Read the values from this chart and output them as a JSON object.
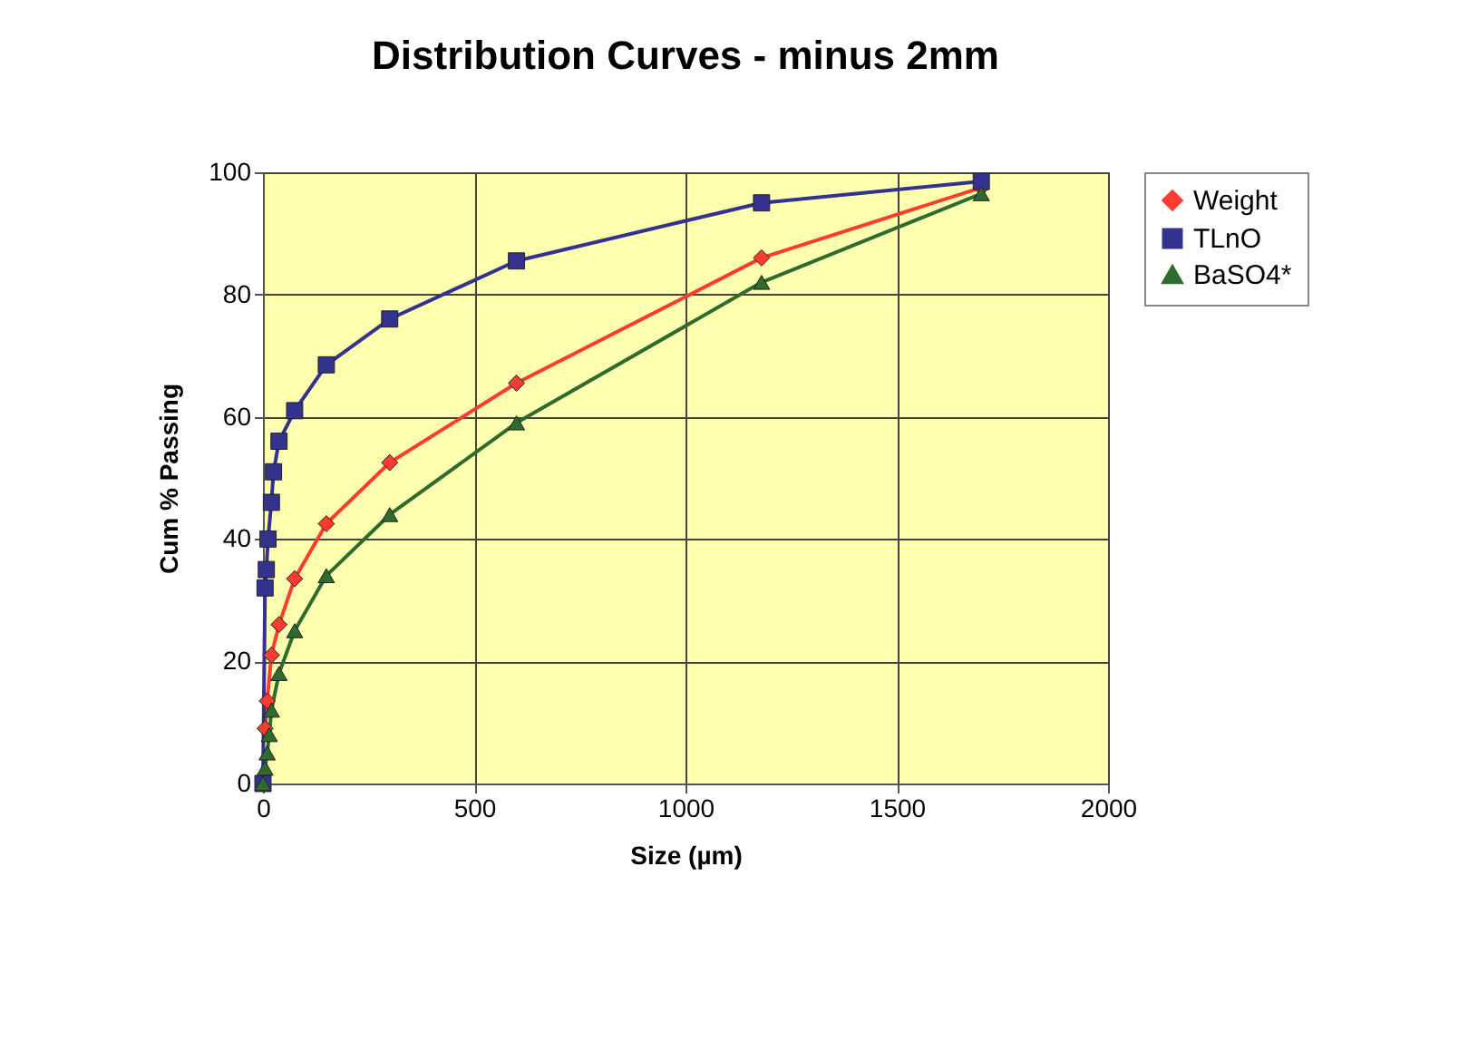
{
  "chart_data": {
    "type": "line",
    "title": "Distribution Curves - minus 2mm",
    "xlabel": "Size (µm)",
    "ylabel": "Cum % Passing",
    "xlim": [
      0,
      2000
    ],
    "xticks": [
      0,
      500,
      1000,
      1500,
      2000
    ],
    "ylim": [
      0,
      100
    ],
    "yticks": [
      0,
      20,
      40,
      60,
      80,
      100
    ],
    "grid": true,
    "legend": "right",
    "line_style": "solid",
    "series": [
      {
        "name": "Weight",
        "color": "#ff3b2f",
        "marker": "diamond",
        "x": [
          5,
          10,
          20,
          38,
          75,
          150,
          300,
          600,
          1180,
          1700
        ],
        "values": [
          9,
          13.5,
          21,
          26,
          33.5,
          42.5,
          52.5,
          65.5,
          86,
          97.5
        ]
      },
      {
        "name": "TLnO",
        "color": "#33338f",
        "marker": "square",
        "x": [
          0,
          5,
          8,
          12,
          20,
          25,
          38,
          75,
          150,
          300,
          600,
          1180,
          1700
        ],
        "values": [
          0,
          32,
          35,
          40,
          46,
          51,
          56,
          61,
          68.5,
          76,
          85.5,
          95,
          98.5
        ]
      },
      {
        "name": "BaSO4*",
        "color": "#2f6a2f",
        "marker": "triangle",
        "x": [
          0,
          5,
          10,
          15,
          20,
          38,
          75,
          150,
          300,
          600,
          1180,
          1700
        ],
        "values": [
          0,
          2.5,
          5,
          8,
          12,
          18,
          25,
          34,
          44,
          59,
          82,
          96.5
        ]
      }
    ]
  }
}
